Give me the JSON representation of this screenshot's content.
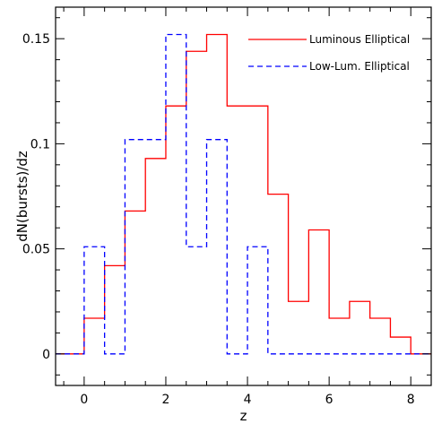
{
  "chart_data": {
    "type": "line",
    "step": true,
    "title": "",
    "xlabel": "z",
    "ylabel": "dN(bursts)/dz",
    "xlim": [
      -0.7,
      8.5
    ],
    "ylim": [
      -0.015,
      0.165
    ],
    "xticks": [
      0,
      2,
      4,
      6,
      8
    ],
    "xtick_labels": [
      "0",
      "2",
      "4",
      "6",
      "8"
    ],
    "yticks": [
      0,
      0.05,
      0.1,
      0.15
    ],
    "ytick_labels": [
      "0",
      "0.05",
      "0.1",
      "0.15"
    ],
    "grid": false,
    "legend_position": "top-right",
    "bin_edges": [
      -0.7,
      0,
      0.5,
      1,
      1.5,
      2,
      2.5,
      3,
      3.5,
      4,
      4.5,
      5,
      5.5,
      6,
      6.5,
      7,
      7.5,
      8,
      8.5
    ],
    "series": [
      {
        "name": "Luminous Elliptical",
        "color": "#ff0000",
        "dash": "solid",
        "values": [
          0,
          0.017,
          0.042,
          0.068,
          0.093,
          0.118,
          0.144,
          0.152,
          0.118,
          0.118,
          0.076,
          0.025,
          0.059,
          0.017,
          0.025,
          0.017,
          0.008,
          0,
          0
        ]
      },
      {
        "name": "Low-Lum. Elliptical",
        "color": "#0000ff",
        "dash": "dashed",
        "values": [
          0,
          0.051,
          0,
          0.102,
          0.102,
          0.152,
          0.051,
          0.102,
          0,
          0.051,
          0,
          0,
          0,
          0,
          0,
          0,
          0,
          0,
          0
        ]
      }
    ]
  }
}
